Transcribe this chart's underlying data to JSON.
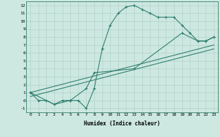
{
  "xlabel": "Humidex (Indice chaleur)",
  "ylabel": "",
  "bg_color": "#cde8e0",
  "line_color": "#2e7d6e",
  "xlim": [
    -0.5,
    23.5
  ],
  "ylim": [
    -1.5,
    12.5
  ],
  "xticks": [
    0,
    1,
    2,
    3,
    4,
    5,
    6,
    7,
    8,
    9,
    10,
    11,
    12,
    13,
    14,
    15,
    16,
    17,
    18,
    19,
    20,
    21,
    22,
    23
  ],
  "yticks": [
    -1,
    0,
    1,
    2,
    3,
    4,
    5,
    6,
    7,
    8,
    9,
    10,
    11,
    12
  ],
  "line1": {
    "x": [
      0,
      1,
      2,
      3,
      4,
      5,
      6,
      7,
      8,
      9,
      10,
      11,
      12,
      13,
      14,
      15,
      16,
      17,
      18,
      19,
      20,
      21,
      22,
      23
    ],
    "y": [
      1,
      0,
      0,
      -0.5,
      0,
      0,
      0,
      -1,
      1.5,
      6.5,
      9.5,
      11,
      11.8,
      12,
      11.5,
      11,
      10.5,
      10.5,
      10.5,
      9.5,
      8.5,
      7.5,
      7.5,
      8
    ]
  },
  "line2": {
    "x": [
      0,
      3,
      5,
      7,
      8,
      13,
      19,
      21,
      22,
      23
    ],
    "y": [
      1,
      -0.5,
      0,
      1.5,
      3.5,
      4,
      8.5,
      7.5,
      7.5,
      8
    ]
  },
  "line3": {
    "x": [
      0,
      23
    ],
    "y": [
      1,
      7
    ]
  },
  "line4": {
    "x": [
      0,
      23
    ],
    "y": [
      0.5,
      6.5
    ]
  }
}
